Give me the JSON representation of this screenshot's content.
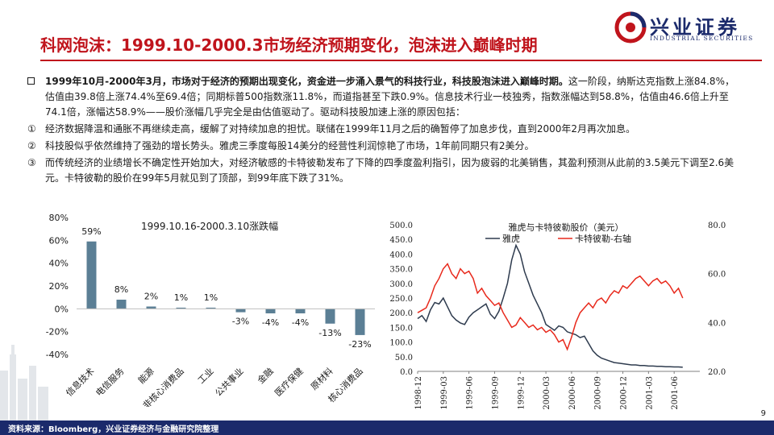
{
  "header": {
    "title": "科网泡沫：1999.10-2000.3市场经济预期变化，泡沫进入巅峰时期",
    "logo_cn": "兴业证券",
    "logo_en": "INDUSTRIAL SECURITIES"
  },
  "body": {
    "intro_bold": "1999年10月-2000年3月，市场对于经济的预期出现变化，资金进一步涌入景气的科技行业，科技股泡沫进入巅峰时期。",
    "intro_rest": "这一阶段，纳斯达克指数上涨84.8%，估值由39.8倍上涨74.4%至69.4倍；同期标普500指数涨11.8%，而道指甚至下跌0.9%。信息技术行业一枝独秀，指数涨幅达到58.8%，估值由46.6倍上升至74.1倍，涨幅达58.9%——股价涨幅几乎完全是由估值驱动了。驱动科技股加速上涨的原因包括：",
    "points": [
      {
        "marker": "①",
        "text": "经济数据降温和通胀不再继续走高，缓解了对持续加息的担忧。联储在1999年11月之后的确暂停了加息步伐，直到2000年2月再次加息。"
      },
      {
        "marker": "②",
        "text": "科技股似乎依然维持了强劲的增长势头。雅虎三季度每股14美分的经营性利润惊艳了市场，1年前同期只有2美分。"
      },
      {
        "marker": "③",
        "text": "而传统经济的业绩增长不确定性开始加大，对经济敏感的卡特彼勒发布了下降的四季度盈利指引，因为疲弱的北美销售，其盈利预测从此前的3.5美元下调至2.6美元。卡特彼勒的股价在99年5月就见到了顶部，到99年底下跌了31%。"
      }
    ]
  },
  "chart_data": [
    {
      "type": "bar",
      "title": "1999.10.16-2000.3.10涨跌幅",
      "categories": [
        "信息技术",
        "电信服务",
        "能源",
        "非核心消费品",
        "工业",
        "公共事业",
        "金融",
        "医疗保健",
        "原材料",
        "核心消费品"
      ],
      "values": [
        59,
        8,
        2,
        1,
        1,
        -3,
        -4,
        -4,
        -13,
        -23
      ],
      "value_labels": [
        "59%",
        "8%",
        "2%",
        "1%",
        "1%",
        "-3%",
        "-4%",
        "-4%",
        "-13%",
        "-23%"
      ],
      "ylim": [
        -40,
        80
      ],
      "y_ticks": [
        80,
        60,
        40,
        20,
        0,
        -20,
        -40
      ],
      "y_tick_labels": [
        "80%",
        "60%",
        "40%",
        "20%",
        "0%",
        "-20%",
        "-40%"
      ],
      "grid": false,
      "colors": {
        "bar": "#5b7f95"
      }
    },
    {
      "type": "line",
      "title": "雅虎与卡特彼勒股价（美元）",
      "x_tick_labels": [
        "1998-12",
        "1999-03",
        "1999-06",
        "1999-09",
        "1999-12",
        "2000-03",
        "2000-06",
        "2000-09",
        "2000-12",
        "2001-03",
        "2001-06"
      ],
      "ylim_left": [
        0,
        500
      ],
      "ylim_right": [
        20,
        80
      ],
      "left_ticks": [
        "0.0",
        "50.0",
        "100.0",
        "150.0",
        "200.0",
        "250.0",
        "300.0",
        "350.0",
        "400.0",
        "450.0",
        "500.0"
      ],
      "right_ticks": [
        "20.0",
        "40.0",
        "60.0",
        "80.0"
      ],
      "legend_position": "top",
      "series": [
        {
          "name": "雅虎",
          "axis": "left",
          "color": "#2e3b4e",
          "x": [
            0,
            0.5,
            1,
            1.5,
            2,
            2.5,
            3,
            3.5,
            4,
            4.5,
            5,
            5.5,
            6,
            6.5,
            7,
            7.5,
            8,
            8.5,
            9,
            9.5,
            10,
            10.5,
            11,
            11.5,
            12,
            12.5,
            13,
            13.5,
            14,
            14.5,
            15,
            15.5,
            16,
            16.5,
            17,
            17.5,
            18,
            18.5,
            19,
            19.5,
            20,
            20.5,
            21,
            21.5,
            22,
            22.5,
            23,
            23.5,
            24,
            24.5,
            25,
            25.5,
            26,
            26.5,
            27,
            27.5,
            28,
            28.5,
            29,
            29.5,
            30,
            30.5,
            31
          ],
          "values": [
            180,
            190,
            170,
            210,
            235,
            230,
            250,
            220,
            190,
            175,
            165,
            160,
            185,
            200,
            210,
            220,
            230,
            195,
            180,
            205,
            250,
            300,
            380,
            430,
            400,
            340,
            300,
            260,
            230,
            200,
            160,
            150,
            140,
            155,
            150,
            135,
            130,
            125,
            115,
            120,
            95,
            70,
            55,
            45,
            40,
            35,
            30,
            28,
            26,
            24,
            22,
            22,
            20,
            20,
            18,
            18,
            17,
            17,
            16,
            16,
            15,
            15,
            14
          ]
        },
        {
          "name": "卡特彼勒-右轴",
          "axis": "right",
          "color": "#e8291c",
          "x": [
            0,
            0.5,
            1,
            1.5,
            2,
            2.5,
            3,
            3.5,
            4,
            4.5,
            5,
            5.5,
            6,
            6.5,
            7,
            7.5,
            8,
            8.5,
            9,
            9.5,
            10,
            10.5,
            11,
            11.5,
            12,
            12.5,
            13,
            13.5,
            14,
            14.5,
            15,
            15.5,
            16,
            16.5,
            17,
            17.5,
            18,
            18.5,
            19,
            19.5,
            20,
            20.5,
            21,
            21.5,
            22,
            22.5,
            23,
            23.5,
            24,
            24.5,
            25,
            25.5,
            26,
            26.5,
            27,
            27.5,
            28,
            28.5,
            29,
            29.5,
            30,
            30.5,
            31
          ],
          "values": [
            44,
            45,
            46,
            50,
            55,
            58,
            62,
            64,
            60,
            58,
            62,
            60,
            61,
            58,
            52,
            54,
            51,
            49,
            47,
            48,
            44,
            41,
            38,
            39,
            42,
            40,
            38,
            39,
            37,
            38,
            36,
            37,
            35,
            32,
            33,
            29,
            34,
            40,
            44,
            46,
            48,
            46,
            49,
            50,
            48,
            51,
            53,
            52,
            55,
            54,
            56,
            58,
            59,
            57,
            55,
            57,
            58,
            56,
            57,
            55,
            52,
            54,
            50
          ]
        }
      ],
      "note": ""
    }
  ],
  "footer": {
    "source": "资料来源：Bloomberg，兴业证券经济与金融研究院整理",
    "page": "9"
  },
  "colors": {
    "brand_red": "#c0141c",
    "brand_navy": "#1b2a6b"
  }
}
